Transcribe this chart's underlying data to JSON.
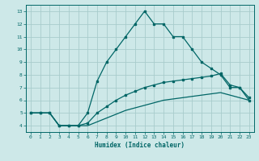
{
  "xlabel": "Humidex (Indice chaleur)",
  "bg_color": "#cde8e8",
  "grid_color": "#a8cccc",
  "line_color": "#006666",
  "xlim": [
    -0.5,
    23.5
  ],
  "ylim": [
    3.5,
    13.5
  ],
  "xticks": [
    0,
    1,
    2,
    3,
    4,
    5,
    6,
    7,
    8,
    9,
    10,
    11,
    12,
    13,
    14,
    15,
    16,
    17,
    18,
    19,
    20,
    21,
    22,
    23
  ],
  "yticks": [
    4,
    5,
    6,
    7,
    8,
    9,
    10,
    11,
    12,
    13
  ],
  "line1_x": [
    0,
    1,
    2,
    3,
    4,
    5,
    6,
    7,
    8,
    9,
    10,
    11,
    12,
    13,
    14,
    15,
    16,
    17,
    18,
    19,
    20,
    21,
    22,
    23
  ],
  "line1_y": [
    5,
    5,
    5,
    4,
    4,
    4,
    5,
    7.5,
    9,
    10,
    11,
    12,
    13,
    12,
    12,
    11,
    11,
    10,
    9,
    8.5,
    8,
    7,
    7,
    6
  ],
  "line2_x": [
    0,
    1,
    2,
    3,
    4,
    5,
    6,
    7,
    8,
    9,
    10,
    11,
    12,
    13,
    14,
    15,
    16,
    17,
    18,
    19,
    20,
    21,
    22,
    23
  ],
  "line2_y": [
    5.0,
    5.0,
    5.0,
    4.0,
    4.0,
    4.0,
    4.2,
    5.0,
    5.5,
    6.0,
    6.4,
    6.7,
    7.0,
    7.2,
    7.4,
    7.5,
    7.6,
    7.7,
    7.8,
    7.9,
    8.1,
    7.2,
    7.0,
    6.2
  ],
  "line3_x": [
    0,
    1,
    2,
    3,
    4,
    5,
    6,
    7,
    8,
    9,
    10,
    11,
    12,
    13,
    14,
    15,
    16,
    17,
    18,
    19,
    20,
    21,
    22,
    23
  ],
  "line3_y": [
    5.0,
    5.0,
    5.0,
    4.0,
    4.0,
    4.0,
    4.0,
    4.3,
    4.6,
    4.9,
    5.2,
    5.4,
    5.6,
    5.8,
    6.0,
    6.1,
    6.2,
    6.3,
    6.4,
    6.5,
    6.6,
    6.4,
    6.2,
    6.0
  ]
}
